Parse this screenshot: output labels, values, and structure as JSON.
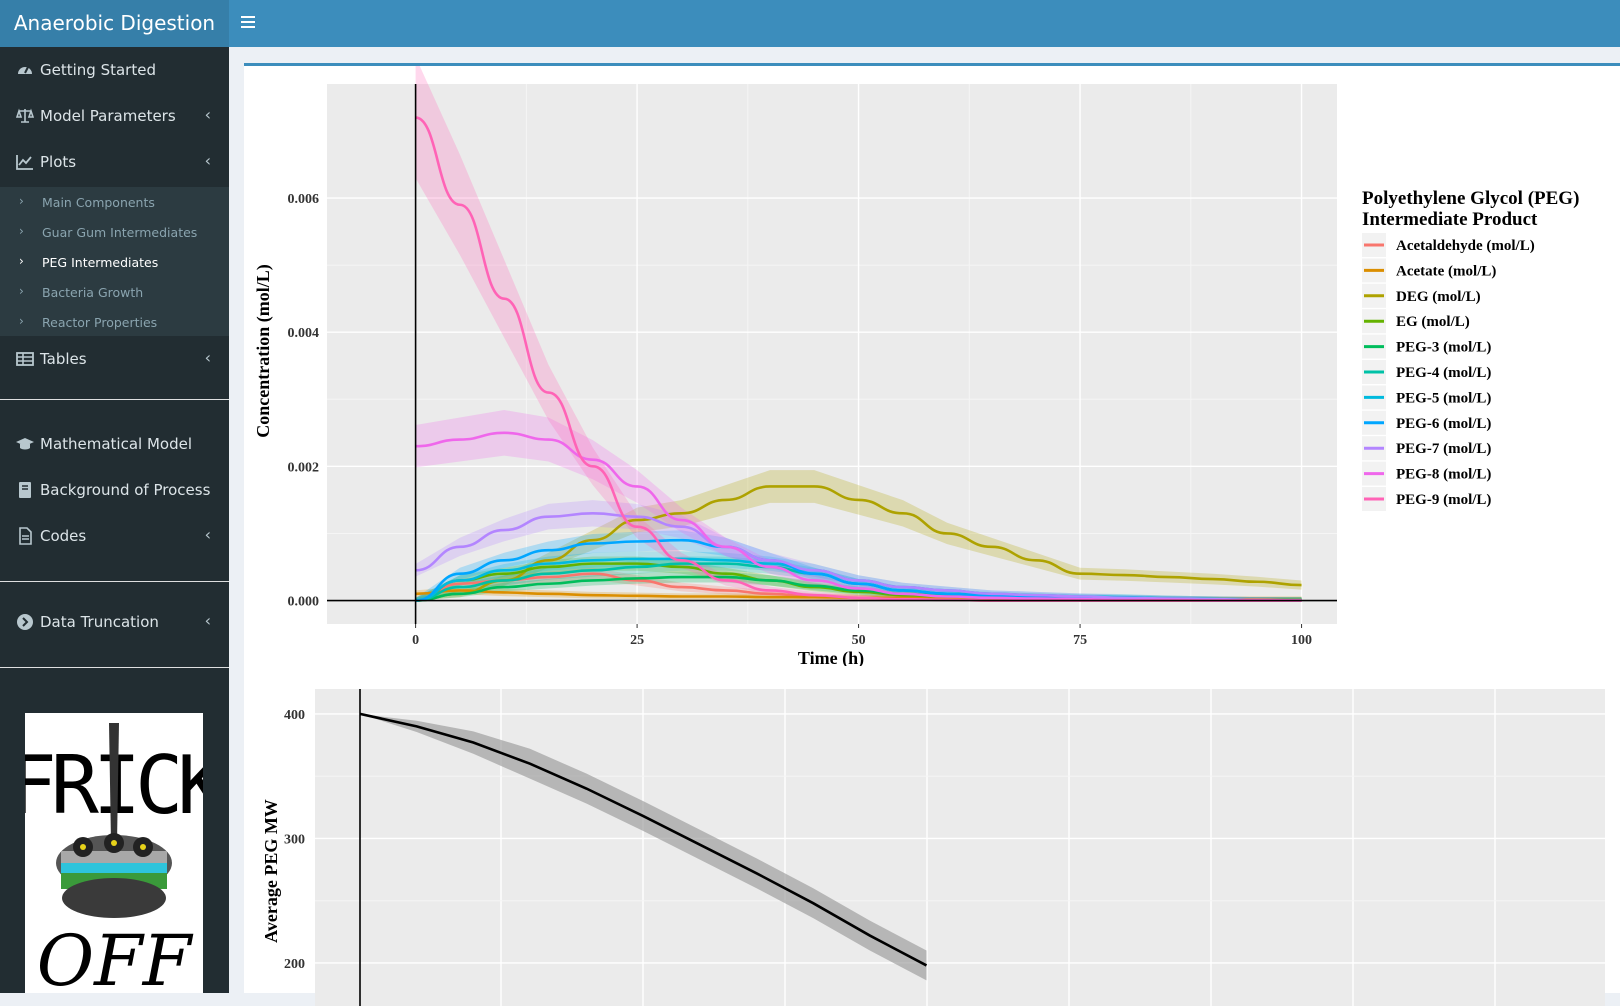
{
  "app": {
    "title": "Anaerobic Digestion"
  },
  "sidebar": {
    "items": [
      {
        "label": "Getting Started",
        "icon": "dashboard-icon"
      },
      {
        "label": "Model Parameters",
        "icon": "balance-scale-icon"
      },
      {
        "label": "Plots",
        "icon": "line-chart-icon"
      },
      {
        "label": "Tables",
        "icon": "table-icon"
      },
      {
        "label": "Mathematical Model",
        "icon": "graduation-cap-icon"
      },
      {
        "label": "Background of Process",
        "icon": "book-icon"
      },
      {
        "label": "Codes",
        "icon": "file-icon"
      },
      {
        "label": "Data Truncation",
        "icon": "chevron-circle-right-icon"
      }
    ],
    "plots_sub": [
      {
        "label": "Main Components"
      },
      {
        "label": "Guar Gum Intermediates"
      },
      {
        "label": "PEG Intermediates"
      },
      {
        "label": "Bacteria Growth"
      },
      {
        "label": "Reactor Properties"
      }
    ],
    "logo_text": {
      "top": "FRICK",
      "bottom": "OFF"
    }
  },
  "chart_data": [
    {
      "type": "line",
      "xlabel": "Time (h)",
      "ylabel": "Concentration (mol/L)",
      "xlim": [
        -10,
        104
      ],
      "ylim": [
        -0.00035,
        0.0077
      ],
      "xticks": [
        0,
        25,
        50,
        75,
        100
      ],
      "yticks": [
        0.0,
        0.002,
        0.004,
        0.006
      ],
      "ytick_labels": [
        "0.000",
        "0.002",
        "0.004",
        "0.006"
      ],
      "grid": true,
      "legend": {
        "title_line1": "Polyethylene Glycol (PEG)",
        "title_line2": "Intermediate Product",
        "placement": "right"
      },
      "x": [
        0,
        5,
        10,
        15,
        20,
        25,
        30,
        35,
        40,
        45,
        50,
        55,
        60,
        65,
        70,
        75,
        80,
        85,
        90,
        95,
        100
      ],
      "series": [
        {
          "name": "Acetaldehyde (mol/L)",
          "color": "#F8766D",
          "values": [
            0.0,
            0.00025,
            0.0003,
            0.00035,
            0.0004,
            0.0003,
            0.0002,
            0.00015,
            0.0001,
            6e-05,
            4e-05,
            2e-05,
            1e-05,
            0.0,
            0.0,
            0.0,
            0.0,
            0.0,
            0.0,
            0.0,
            0.0
          ]
        },
        {
          "name": "Acetate (mol/L)",
          "color": "#DB8E00",
          "values": [
            0.0001,
            0.00015,
            0.00012,
            0.0001,
            8e-05,
            7e-05,
            6e-05,
            6e-05,
            5e-05,
            5e-05,
            4e-05,
            4e-05,
            3e-05,
            3e-05,
            3e-05,
            2e-05,
            2e-05,
            2e-05,
            2e-05,
            2e-05,
            2e-05
          ]
        },
        {
          "name": "DEG (mol/L)",
          "color": "#AEA200",
          "values": [
            0.0,
            0.0001,
            0.0003,
            0.0006,
            0.0009,
            0.0012,
            0.0013,
            0.0015,
            0.0017,
            0.0017,
            0.0015,
            0.0013,
            0.001,
            0.0008,
            0.0006,
            0.0004,
            0.00038,
            0.00035,
            0.00032,
            0.00028,
            0.00023
          ]
        },
        {
          "name": "EG (mol/L)",
          "color": "#64B200",
          "values": [
            0.0,
            0.0003,
            0.0004,
            0.0005,
            0.00055,
            0.00055,
            0.0005,
            0.0004,
            0.0003,
            0.0002,
            0.00013,
            8e-05,
            6e-05,
            4e-05,
            3e-05,
            2e-05,
            2e-05,
            1e-05,
            1e-05,
            1e-05,
            1e-05
          ]
        },
        {
          "name": "PEG-3 (mol/L)",
          "color": "#00BD5C",
          "values": [
            0.0,
            0.0001,
            0.0002,
            0.00025,
            0.0003,
            0.00033,
            0.00035,
            0.00035,
            0.0003,
            0.00022,
            0.00015,
            0.0001,
            7e-05,
            5e-05,
            4e-05,
            3e-05,
            2e-05,
            2e-05,
            1e-05,
            1e-05,
            1e-05
          ]
        },
        {
          "name": "PEG-4 (mol/L)",
          "color": "#00C1A7",
          "values": [
            0.0,
            0.0002,
            0.0003,
            0.0004,
            0.00045,
            0.0005,
            0.00055,
            0.00055,
            0.0005,
            0.0004,
            0.00025,
            0.00015,
            0.0001,
            8e-05,
            6e-05,
            5e-05,
            4e-05,
            3e-05,
            2e-05,
            1e-05,
            1e-05
          ]
        },
        {
          "name": "PEG-5 (mol/L)",
          "color": "#00BADE",
          "values": [
            0.0,
            0.0003,
            0.00045,
            0.00055,
            0.0006,
            0.00062,
            0.00062,
            0.0006,
            0.00055,
            0.00045,
            0.0003,
            0.0002,
            0.00015,
            0.0001,
            8e-05,
            6e-05,
            5e-05,
            3e-05,
            2e-05,
            1e-05,
            1e-05
          ]
        },
        {
          "name": "PEG-6 (mol/L)",
          "color": "#00A6FF",
          "values": [
            0.0,
            0.0004,
            0.0006,
            0.00075,
            0.00085,
            0.00088,
            0.0009,
            0.0008,
            0.0006,
            0.0004,
            0.00025,
            0.00015,
            0.0001,
            7e-05,
            5e-05,
            4e-05,
            3e-05,
            2e-05,
            1e-05,
            1e-05,
            0.0
          ]
        },
        {
          "name": "PEG-7 (mol/L)",
          "color": "#B385FF",
          "values": [
            0.00045,
            0.0008,
            0.00105,
            0.00125,
            0.0013,
            0.00125,
            0.0011,
            0.0008,
            0.0006,
            0.00045,
            0.0003,
            0.0002,
            0.00015,
            0.0001,
            8e-05,
            6e-05,
            4e-05,
            3e-05,
            2e-05,
            1e-05,
            0.0
          ]
        },
        {
          "name": "PEG-8 (mol/L)",
          "color": "#EF67EB",
          "values": [
            0.0023,
            0.0024,
            0.0025,
            0.0024,
            0.0021,
            0.0017,
            0.0012,
            0.0008,
            0.0005,
            0.0003,
            0.00018,
            0.0001,
            6e-05,
            4e-05,
            3e-05,
            2e-05,
            1e-05,
            1e-05,
            0.0,
            0.0,
            0.0
          ]
        },
        {
          "name": "PEG-9 (mol/L)",
          "color": "#FF63B6",
          "values": [
            0.0072,
            0.0059,
            0.0045,
            0.0031,
            0.002,
            0.0011,
            0.0006,
            0.0003,
            0.00015,
            8e-05,
            4e-05,
            2e-05,
            1e-05,
            0.0,
            0.0,
            0.0,
            0.0,
            0.0,
            0.0,
            0.0,
            0.0
          ]
        }
      ]
    },
    {
      "type": "line",
      "ylabel": "Average PEG MW",
      "ytick_labels": [
        "400",
        "300",
        "200"
      ],
      "yticks": [
        400,
        300,
        200
      ],
      "ylim": [
        155,
        420
      ],
      "xlim": [
        -10,
        104
      ],
      "grid": true,
      "x": [
        0,
        5,
        10,
        15,
        20,
        25,
        30,
        35,
        40,
        45,
        50
      ],
      "series": [
        {
          "color": "#000000",
          "values": [
            400,
            390,
            377,
            360,
            340,
            318,
            295,
            272,
            248,
            222,
            198
          ]
        }
      ]
    }
  ]
}
